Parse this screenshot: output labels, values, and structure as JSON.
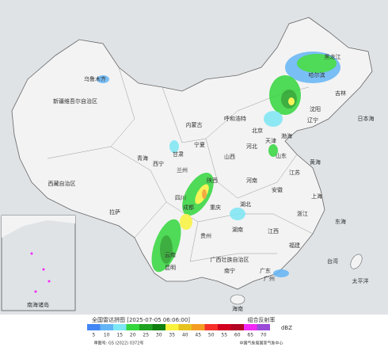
{
  "map": {
    "labels": [
      "新疆维吾尔自治区",
      "西藏自治区",
      "青海",
      "内蒙古",
      "黑龙江",
      "吉林",
      "辽宁",
      "北京",
      "天津",
      "河北",
      "山西",
      "山东",
      "河南",
      "陕西",
      "甘肃",
      "宁夏",
      "四川",
      "重庆",
      "湖北",
      "安徽",
      "江苏",
      "上海",
      "浙江",
      "湖南",
      "江西",
      "福建",
      "台湾",
      "贵州",
      "云南",
      "广西壮族自治区",
      "广东",
      "海南",
      "乌鲁木齐",
      "拉萨",
      "西宁",
      "兰州",
      "成都",
      "昆明",
      "渤海",
      "黄海",
      "东海",
      "太平洋",
      "日本海",
      "哈尔滨",
      "沈阳",
      "呼和浩特",
      "南宁",
      "广州",
      "南海诸岛"
    ],
    "legend": {
      "title": "全国雷达拼图 [2025-07-05 06:06:00]",
      "product": "组合反射率",
      "unit": "dBZ",
      "scale": [
        {
          "value": 5,
          "color": "#4186f4"
        },
        {
          "value": 10,
          "color": "#64b5f6"
        },
        {
          "value": 15,
          "color": "#7de7f5"
        },
        {
          "value": 20,
          "color": "#33d63c"
        },
        {
          "value": 25,
          "color": "#1fa221"
        },
        {
          "value": 30,
          "color": "#0f7f0f"
        },
        {
          "value": 35,
          "color": "#f9f33c"
        },
        {
          "value": 40,
          "color": "#e6c320"
        },
        {
          "value": 45,
          "color": "#f59d22"
        },
        {
          "value": 50,
          "color": "#f5312a"
        },
        {
          "value": 55,
          "color": "#d2001e"
        },
        {
          "value": 60,
          "color": "#b30423"
        },
        {
          "value": 65,
          "color": "#f327f5"
        },
        {
          "value": 70,
          "color": "#9a4bd8"
        }
      ],
      "approval": "审图号: GS (2022) 0372号",
      "source": "中国气象局国家气象中心"
    }
  }
}
